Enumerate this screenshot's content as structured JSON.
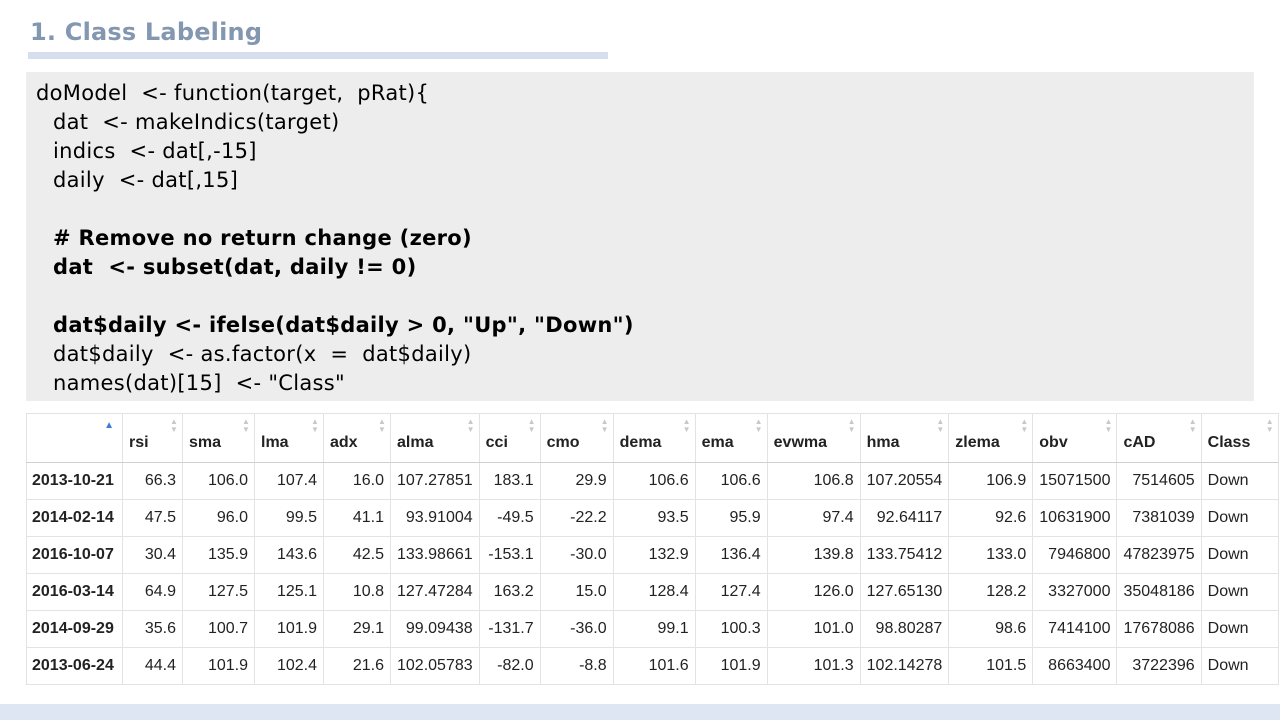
{
  "slide": {
    "title": "1. Class Labeling"
  },
  "code": {
    "lines": [
      {
        "text": "doModel  <- function(target,  pRat){",
        "bold": false,
        "indent": false
      },
      {
        "text": "dat  <- makeIndics(target)",
        "bold": false,
        "indent": true
      },
      {
        "text": "indics  <- dat[,-15]",
        "bold": false,
        "indent": true
      },
      {
        "text": "daily  <- dat[,15]",
        "bold": false,
        "indent": true
      },
      {
        "text": "",
        "bold": false,
        "indent": true
      },
      {
        "text": "# Remove no return change (zero)",
        "bold": true,
        "indent": true
      },
      {
        "text": "dat  <- subset(dat, daily != 0)",
        "bold": true,
        "indent": true
      },
      {
        "text": "",
        "bold": false,
        "indent": true
      },
      {
        "text": "dat$daily <- ifelse(dat$daily > 0, \"Up\", \"Down\")",
        "bold": true,
        "indent": true
      },
      {
        "text": "dat$daily  <- as.factor(x  =  dat$daily)",
        "bold": false,
        "indent": true
      },
      {
        "text": "names(dat)[15]  <- \"Class\"",
        "bold": false,
        "indent": true
      }
    ]
  },
  "table": {
    "sort_indicator": "ascending",
    "columns": [
      "",
      "rsi",
      "sma",
      "lma",
      "adx",
      "alma",
      "cci",
      "cmo",
      "dema",
      "ema",
      "evwma",
      "hma",
      "zlema",
      "obv",
      "cAD",
      "Class"
    ],
    "rows": [
      [
        "2013-10-21",
        "66.3",
        "106.0",
        "107.4",
        "16.0",
        "107.27851",
        "183.1",
        "29.9",
        "106.6",
        "106.6",
        "106.8",
        "107.20554",
        "106.9",
        "15071500",
        "7514605",
        "Down"
      ],
      [
        "2014-02-14",
        "47.5",
        "96.0",
        "99.5",
        "41.1",
        "93.91004",
        "-49.5",
        "-22.2",
        "93.5",
        "95.9",
        "97.4",
        "92.64117",
        "92.6",
        "10631900",
        "7381039",
        "Down"
      ],
      [
        "2016-10-07",
        "30.4",
        "135.9",
        "143.6",
        "42.5",
        "133.98661",
        "-153.1",
        "-30.0",
        "132.9",
        "136.4",
        "139.8",
        "133.75412",
        "133.0",
        "7946800",
        "47823975",
        "Down"
      ],
      [
        "2016-03-14",
        "64.9",
        "127.5",
        "125.1",
        "10.8",
        "127.47284",
        "163.2",
        "15.0",
        "128.4",
        "127.4",
        "126.0",
        "127.65130",
        "128.2",
        "3327000",
        "35048186",
        "Down"
      ],
      [
        "2014-09-29",
        "35.6",
        "100.7",
        "101.9",
        "29.1",
        "99.09438",
        "-131.7",
        "-36.0",
        "99.1",
        "100.3",
        "101.0",
        "98.80287",
        "98.6",
        "7414100",
        "17678086",
        "Down"
      ],
      [
        "2013-06-24",
        "44.4",
        "101.9",
        "102.4",
        "21.6",
        "102.05783",
        "-82.0",
        "-8.8",
        "101.6",
        "101.9",
        "101.3",
        "102.14278",
        "101.5",
        "8663400",
        "3722396",
        "Down"
      ]
    ]
  }
}
